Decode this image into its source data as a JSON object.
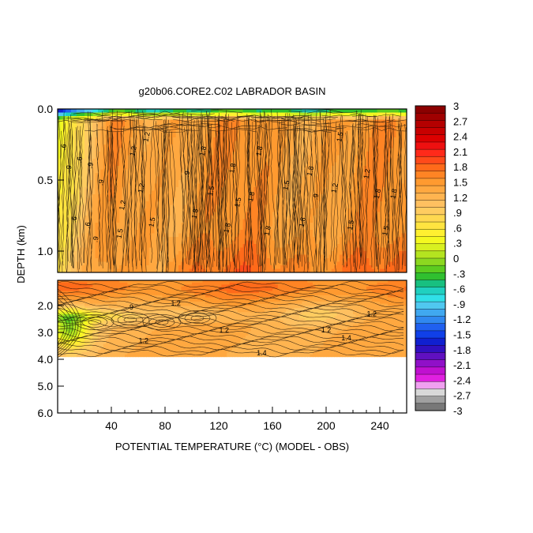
{
  "chart_data": {
    "type": "heatmap",
    "title": "g20b06.CORE2.C02 LABRADOR BASIN",
    "xlabel": "POTENTIAL TEMPERATURE (°C) (MODEL - OBS)",
    "ylabel": "DEPTH (km)",
    "x_ticks": [
      40,
      80,
      120,
      160,
      200,
      240
    ],
    "x_tick_labels": [
      "40",
      "80",
      "120",
      "160",
      "200",
      "240"
    ],
    "xlim": [
      0,
      260
    ],
    "upper_panel": {
      "ylim": [
        0.0,
        1.15
      ],
      "y_ticks": [
        0.0,
        0.5,
        1.0
      ],
      "y_tick_labels": [
        "0.0",
        "0.5",
        "1.0"
      ]
    },
    "lower_panel": {
      "ylim": [
        1.15,
        6.0
      ],
      "data_bottom": 3.9,
      "y_ticks": [
        2.0,
        3.0,
        4.0,
        5.0,
        6.0
      ],
      "y_tick_labels": [
        "2.0",
        "3.0",
        "4.0",
        "5.0",
        "6.0"
      ]
    },
    "contour_labels_upper": [
      {
        "x": 6,
        "y": 0.27,
        "text": ".6"
      },
      {
        "x": 10,
        "y": 0.42,
        "text": ".9"
      },
      {
        "x": 18,
        "y": 0.36,
        "text": ".6"
      },
      {
        "x": 26,
        "y": 0.4,
        "text": ".9"
      },
      {
        "x": 14,
        "y": 0.78,
        "text": ".6"
      },
      {
        "x": 24,
        "y": 0.82,
        "text": ".6"
      },
      {
        "x": 34,
        "y": 0.52,
        "text": ".9"
      },
      {
        "x": 30,
        "y": 0.92,
        "text": ".9"
      },
      {
        "x": 50,
        "y": 0.68,
        "text": "1.2"
      },
      {
        "x": 58,
        "y": 0.3,
        "text": "1.2"
      },
      {
        "x": 64,
        "y": 0.56,
        "text": "1.2"
      },
      {
        "x": 48,
        "y": 0.88,
        "text": "1.5"
      },
      {
        "x": 68,
        "y": 0.2,
        "text": "1.2"
      },
      {
        "x": 72,
        "y": 0.8,
        "text": "1.5"
      },
      {
        "x": 98,
        "y": 0.46,
        "text": ".9"
      },
      {
        "x": 104,
        "y": 0.74,
        "text": "1.8"
      },
      {
        "x": 110,
        "y": 0.3,
        "text": "1.8"
      },
      {
        "x": 116,
        "y": 0.58,
        "text": "1.5"
      },
      {
        "x": 128,
        "y": 0.84,
        "text": "1.8"
      },
      {
        "x": 132,
        "y": 0.42,
        "text": "1.8"
      },
      {
        "x": 136,
        "y": 0.66,
        "text": "1.5"
      },
      {
        "x": 146,
        "y": 0.62,
        "text": "1.8"
      },
      {
        "x": 152,
        "y": 0.3,
        "text": "1.8"
      },
      {
        "x": 158,
        "y": 0.86,
        "text": "1.8"
      },
      {
        "x": 172,
        "y": 0.54,
        "text": "1.5"
      },
      {
        "x": 184,
        "y": 0.8,
        "text": "1.8"
      },
      {
        "x": 190,
        "y": 0.44,
        "text": "1.8"
      },
      {
        "x": 194,
        "y": 0.62,
        "text": ".9"
      },
      {
        "x": 208,
        "y": 0.56,
        "text": "1.2"
      },
      {
        "x": 212,
        "y": 0.2,
        "text": "1.5"
      },
      {
        "x": 220,
        "y": 0.82,
        "text": "1.5"
      },
      {
        "x": 232,
        "y": 0.46,
        "text": "1.2"
      },
      {
        "x": 240,
        "y": 0.6,
        "text": "1.8"
      },
      {
        "x": 246,
        "y": 0.86,
        "text": "1.5"
      },
      {
        "x": 252,
        "y": 0.6,
        "text": "1.8"
      }
    ],
    "contour_labels_lower": [
      {
        "x": 55,
        "y": 2.15,
        "text": "9"
      },
      {
        "x": 88,
        "y": 2.0,
        "text": "1.2"
      },
      {
        "x": 64,
        "y": 3.4,
        "text": "1.2"
      },
      {
        "x": 124,
        "y": 3.0,
        "text": "1.2"
      },
      {
        "x": 200,
        "y": 3.0,
        "text": "1.2"
      },
      {
        "x": 215,
        "y": 3.3,
        "text": "1.4"
      },
      {
        "x": 152,
        "y": 3.85,
        "text": "1.4"
      },
      {
        "x": 234,
        "y": 2.4,
        "text": "1.2"
      }
    ],
    "colorbar": {
      "levels": [
        3,
        2.7,
        2.4,
        2.1,
        1.8,
        1.5,
        1.2,
        0.9,
        0.6,
        0.3,
        0,
        -0.3,
        -0.6,
        -0.9,
        -1.2,
        -1.5,
        -1.8,
        -2.1,
        -2.4,
        -2.7,
        -3
      ],
      "labels": [
        "3",
        "2.7",
        "2.4",
        "2.1",
        "1.8",
        "1.5",
        "1.2",
        ".9",
        ".6",
        ".3",
        "0",
        "-.3",
        "-.6",
        "-.9",
        "-1.2",
        "-1.5",
        "-1.8",
        "-2.1",
        "-2.4",
        "-2.7",
        "-3"
      ],
      "colors": [
        "#8b0000",
        "#a00000",
        "#b40000",
        "#c80000",
        "#dc0000",
        "#ee1010",
        "#ff2a1a",
        "#ff4a1a",
        "#ff6a1a",
        "#ff8424",
        "#ff9a30",
        "#ffa840",
        "#ffb450",
        "#ffc060",
        "#ffcc60",
        "#ffd850",
        "#ffe440",
        "#fff030",
        "#f4f820",
        "#d8f020",
        "#b4e420",
        "#8cd820",
        "#5ccc20",
        "#30c030",
        "#18c080",
        "#20d0c0",
        "#30e0e8",
        "#50c8f0",
        "#40a8f0",
        "#3088f0",
        "#2060f0",
        "#1040e8",
        "#1020d0",
        "#3010c0",
        "#6010c0",
        "#9010c8",
        "#c010d0",
        "#e020e0",
        "#f0a0f0",
        "#d8d8d8",
        "#a0a0a0",
        "#787878"
      ]
    }
  }
}
